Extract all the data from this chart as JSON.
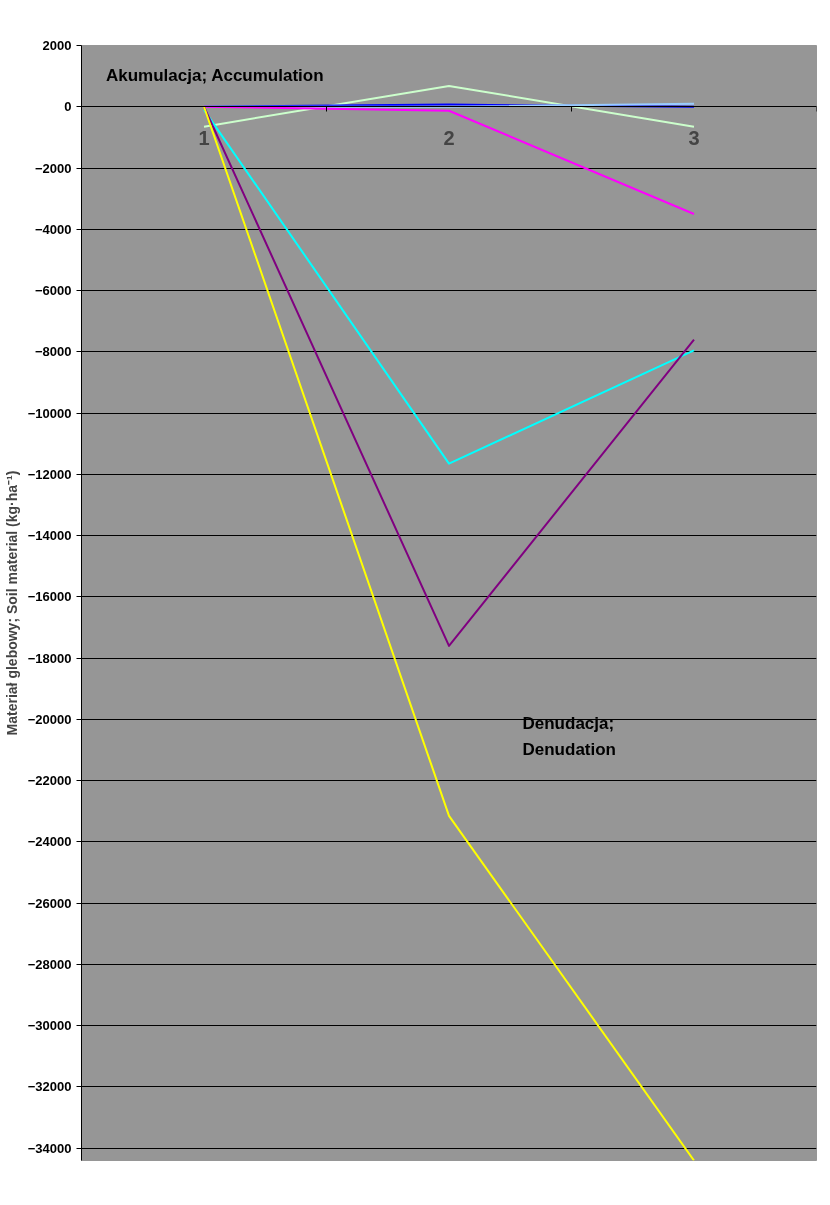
{
  "chart_data": {
    "type": "line",
    "ylabel": "Materiał glebowy; Soil material (kg·ha⁻¹)",
    "categories": [
      "1",
      "2",
      "3"
    ],
    "series": [
      {
        "color": "#ccffcc",
        "values": [
          -650,
          680,
          -650
        ]
      },
      {
        "color": "#0000ff",
        "values": [
          0,
          70,
          0
        ]
      },
      {
        "color": "#99ccff",
        "values": [
          0,
          0,
          100
        ]
      },
      {
        "color": "#ff00ff",
        "values": [
          0,
          -130,
          -3500
        ]
      },
      {
        "color": "#00ffff",
        "values": [
          -100,
          -11650,
          -7950
        ]
      },
      {
        "color": "#800080",
        "values": [
          0,
          -17600,
          -7600
        ]
      },
      {
        "color": "#ffff00",
        "values": [
          0,
          -23150,
          -34400
        ]
      }
    ],
    "ylim": [
      -34400,
      2000
    ],
    "yticks": [
      2000,
      0,
      -2000,
      -4000,
      -6000,
      -8000,
      -10000,
      -12000,
      -14000,
      -16000,
      -18000,
      -20000,
      -22000,
      -24000,
      -26000,
      -28000,
      -30000,
      -32000,
      -34000
    ],
    "grid": "y",
    "marker": "none",
    "line_style": "solid",
    "annotations": [
      "Akumulacja; Accumulation",
      "Denudacja;\nDenudation"
    ]
  }
}
